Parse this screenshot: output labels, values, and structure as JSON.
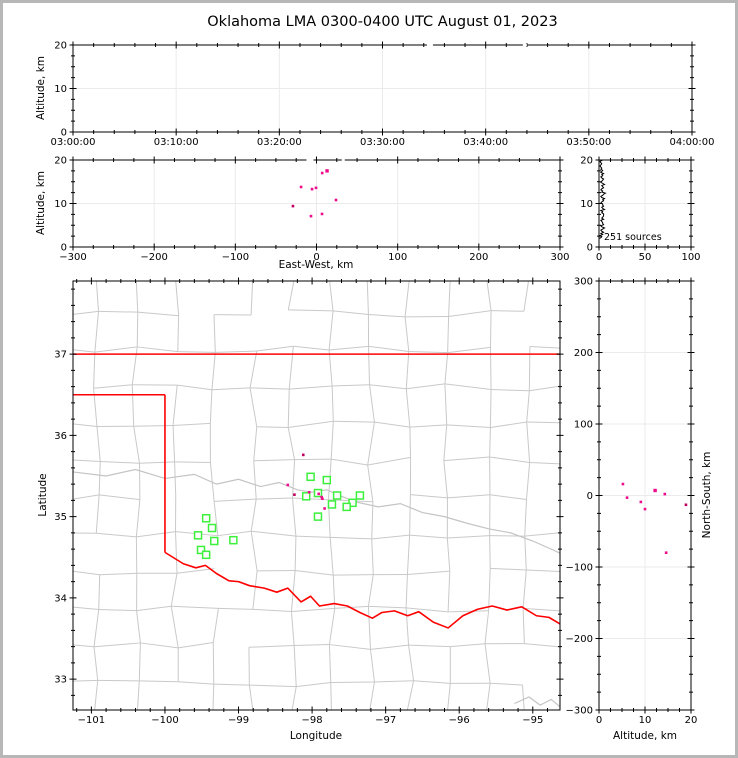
{
  "title": "Oklahoma LMA 0300-0400 UTC August 01, 2023",
  "colors": {
    "source": "#ec0c8c",
    "source_dark": "#c00060",
    "station": "#3cf03c",
    "state_boundary": "#ff0000",
    "county_line": "#c9c9c9",
    "gridline": "#ebebeb",
    "river_gray": "#c4c4c4",
    "histogram_line": "#000000",
    "panel_border": "#000000",
    "frame_border": "#b7b7b7"
  },
  "chart_data": [
    {
      "id": "altitude_vs_time",
      "type": "scatter",
      "xlabel": "",
      "ylabel": "Altitude, km",
      "x_tick_labels": [
        "03:00:00",
        "03:10:00",
        "03:20:00",
        "03:30:00",
        "03:40:00",
        "03:50:00",
        "04:00:00"
      ],
      "xlim_minutes": [
        0,
        60
      ],
      "ylim": [
        0,
        20
      ],
      "y_ticks": [
        0,
        10,
        20
      ],
      "points": [],
      "clipped_top": [
        {
          "minute": 34.6,
          "w": 6
        },
        {
          "minute": 43.8,
          "w": 4
        }
      ]
    },
    {
      "id": "altitude_vs_east_west",
      "type": "scatter",
      "xlabel": "East-West, km",
      "ylabel": "Altitude, km",
      "xlim": [
        -300,
        300
      ],
      "x_ticks": [
        -300,
        -200,
        -100,
        0,
        100,
        200,
        300
      ],
      "ylim": [
        0,
        20
      ],
      "y_ticks": [
        0,
        10,
        20
      ],
      "points": [
        {
          "x": 13,
          "y": 17.5,
          "s": 3.4
        },
        {
          "x": 7,
          "y": 17.0
        },
        {
          "x": -19,
          "y": 13.8
        },
        {
          "x": -5.5,
          "y": 13.3
        },
        {
          "x": -0.6,
          "y": 13.6
        },
        {
          "x": 24,
          "y": 10.8
        },
        {
          "x": -29,
          "y": 9.4,
          "dark": true
        },
        {
          "x": -6.8,
          "y": 7.1
        },
        {
          "x": 6.8,
          "y": 7.6
        }
      ],
      "clipped_top": [
        {
          "x": -8,
          "w": 7
        },
        {
          "x": 33,
          "w": 3
        }
      ]
    },
    {
      "id": "altitude_histogram",
      "type": "line",
      "annotation": "251 sources",
      "xlabel": "",
      "ylabel": "",
      "xlim": [
        0,
        100
      ],
      "x_ticks": [
        0,
        50,
        100
      ],
      "ylim": [
        0,
        20
      ],
      "y_ticks": [
        0,
        10,
        20
      ],
      "bin_start_km": 2,
      "bin_step_km": 0.25,
      "counts": [
        2,
        3,
        1,
        4,
        2,
        5,
        3,
        2,
        4,
        6,
        3,
        2,
        5,
        4,
        4,
        3,
        2,
        5,
        3,
        4,
        5,
        5,
        5,
        3,
        4,
        2,
        6,
        4,
        3,
        5,
        4,
        4,
        2,
        3,
        5,
        4,
        6,
        3,
        2,
        4,
        5,
        7,
        3,
        4,
        2,
        3,
        5,
        4,
        3,
        6,
        4,
        2,
        3,
        4,
        5,
        3,
        2,
        4,
        3,
        5,
        2,
        3,
        4,
        2,
        3,
        2,
        1,
        2,
        3,
        2,
        1,
        3
      ]
    },
    {
      "id": "plan_view_map",
      "type": "scatter",
      "xlabel": "Longitude",
      "ylabel": "Latitude",
      "xlim": [
        -101.25,
        -94.63
      ],
      "ylim": [
        32.62,
        37.9
      ],
      "x_ticks": [
        -101,
        -100,
        -99,
        -98,
        -97,
        -96,
        -95
      ],
      "y_ticks": [
        33,
        34,
        35,
        36,
        37
      ],
      "stations": [
        {
          "lon": -98.02,
          "lat": 35.49
        },
        {
          "lon": -97.8,
          "lat": 35.45
        },
        {
          "lon": -97.92,
          "lat": 35.29
        },
        {
          "lon": -98.08,
          "lat": 35.25
        },
        {
          "lon": -97.66,
          "lat": 35.26
        },
        {
          "lon": -97.35,
          "lat": 35.26
        },
        {
          "lon": -97.45,
          "lat": 35.17
        },
        {
          "lon": -97.73,
          "lat": 35.15
        },
        {
          "lon": -97.53,
          "lat": 35.12
        },
        {
          "lon": -97.92,
          "lat": 35.0
        },
        {
          "lon": -99.44,
          "lat": 34.98
        },
        {
          "lon": -99.36,
          "lat": 34.86
        },
        {
          "lon": -99.55,
          "lat": 34.77
        },
        {
          "lon": -99.33,
          "lat": 34.7
        },
        {
          "lon": -99.07,
          "lat": 34.71
        },
        {
          "lon": -99.51,
          "lat": 34.59
        },
        {
          "lon": -99.44,
          "lat": 34.53
        }
      ],
      "sources": [
        {
          "lon": -98.12,
          "lat": 35.76,
          "dark": true
        },
        {
          "lon": -98.33,
          "lat": 35.39
        },
        {
          "lon": -98.04,
          "lat": 35.3
        },
        {
          "lon": -97.91,
          "lat": 35.28
        },
        {
          "lon": -97.87,
          "lat": 35.24
        },
        {
          "lon": -97.86,
          "lat": 35.22
        },
        {
          "lon": -97.83,
          "lat": 35.1
        },
        {
          "lon": -98.24,
          "lat": 35.27,
          "dark": true
        }
      ],
      "state_boundary": {
        "north_lat": 37.0,
        "panhandle_south_lat": 36.5,
        "panhandle_east_lon": -100.0,
        "west_border_bottom_lat": 34.56,
        "red_river": [
          [
            -100.0,
            34.56
          ],
          [
            -99.75,
            34.42
          ],
          [
            -99.58,
            34.37
          ],
          [
            -99.45,
            34.4
          ],
          [
            -99.3,
            34.3
          ],
          [
            -99.13,
            34.21
          ],
          [
            -99.0,
            34.2
          ],
          [
            -98.85,
            34.15
          ],
          [
            -98.65,
            34.12
          ],
          [
            -98.48,
            34.07
          ],
          [
            -98.33,
            34.12
          ],
          [
            -98.15,
            33.95
          ],
          [
            -98.02,
            34.02
          ],
          [
            -97.9,
            33.9
          ],
          [
            -97.7,
            33.93
          ],
          [
            -97.52,
            33.9
          ],
          [
            -97.35,
            33.82
          ],
          [
            -97.18,
            33.75
          ],
          [
            -97.05,
            33.82
          ],
          [
            -96.88,
            33.84
          ],
          [
            -96.7,
            33.78
          ],
          [
            -96.55,
            33.83
          ],
          [
            -96.35,
            33.7
          ],
          [
            -96.15,
            33.63
          ],
          [
            -95.95,
            33.78
          ],
          [
            -95.75,
            33.86
          ],
          [
            -95.55,
            33.9
          ],
          [
            -95.35,
            33.85
          ],
          [
            -95.15,
            33.89
          ],
          [
            -94.95,
            33.78
          ],
          [
            -94.78,
            33.76
          ],
          [
            -94.63,
            33.68
          ]
        ]
      },
      "gray_rivers": [
        [
          [
            -101.25,
            35.55
          ],
          [
            -100.8,
            35.5
          ],
          [
            -100.4,
            35.58
          ],
          [
            -100.0,
            35.47
          ],
          [
            -99.6,
            35.52
          ],
          [
            -99.3,
            35.4
          ],
          [
            -99.0,
            35.46
          ],
          [
            -98.7,
            35.37
          ],
          [
            -98.45,
            35.42
          ],
          [
            -98.2,
            35.33
          ],
          [
            -98.0,
            35.3
          ],
          [
            -97.8,
            35.33
          ],
          [
            -97.6,
            35.25
          ],
          [
            -97.4,
            35.18
          ],
          [
            -97.1,
            35.12
          ],
          [
            -96.8,
            35.16
          ],
          [
            -96.5,
            35.05
          ],
          [
            -96.2,
            35.0
          ],
          [
            -95.9,
            34.92
          ],
          [
            -95.6,
            34.85
          ],
          [
            -95.3,
            34.8
          ],
          [
            -95.0,
            34.7
          ],
          [
            -94.75,
            34.6
          ],
          [
            -94.63,
            34.55
          ]
        ],
        [
          [
            -95.25,
            32.7
          ],
          [
            -95.05,
            32.78
          ],
          [
            -94.9,
            32.68
          ],
          [
            -94.75,
            32.75
          ],
          [
            -94.63,
            32.66
          ]
        ]
      ]
    },
    {
      "id": "north_south_vs_altitude",
      "type": "scatter",
      "xlabel": "Altitude, km",
      "ylabel": "North-South, km",
      "xlim": [
        0,
        20
      ],
      "x_ticks": [
        0,
        10,
        20
      ],
      "ylim": [
        -300,
        300
      ],
      "y_ticks": [
        -300,
        -200,
        -100,
        0,
        100,
        200,
        300
      ],
      "points": [
        {
          "x": 5.2,
          "y": 16
        },
        {
          "x": 6.1,
          "y": -3
        },
        {
          "x": 9.1,
          "y": -9
        },
        {
          "x": 12.2,
          "y": 7,
          "s": 3.4
        },
        {
          "x": 14.3,
          "y": 2
        },
        {
          "x": 10.0,
          "y": -19
        },
        {
          "x": 18.9,
          "y": -13,
          "dark": true
        },
        {
          "x": 14.6,
          "y": -80
        }
      ]
    }
  ]
}
